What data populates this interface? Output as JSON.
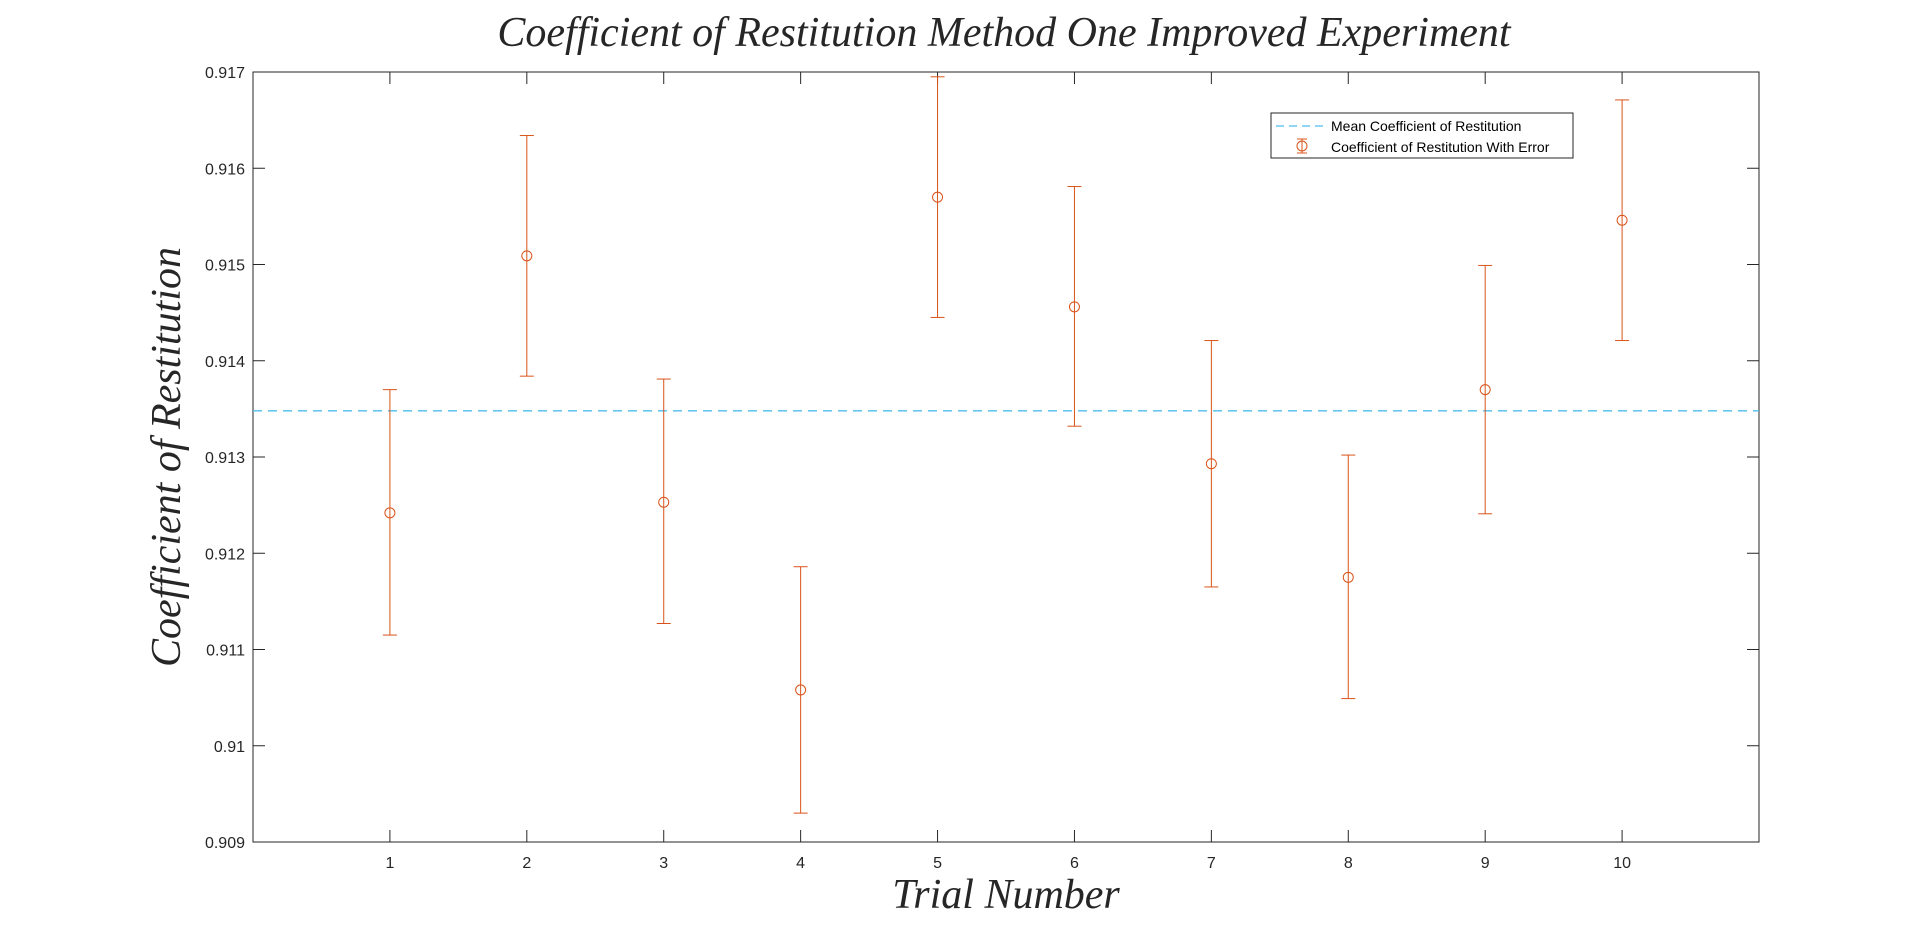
{
  "chart_data": {
    "type": "scatter",
    "title": "Coefficient of Restitution Method One Improved Experiment",
    "xlabel": "Trial Number",
    "ylabel": "Coefficient of Restitution",
    "xlim": [
      0,
      11
    ],
    "ylim": [
      0.909,
      0.917
    ],
    "x_ticks": [
      1,
      2,
      3,
      4,
      5,
      6,
      7,
      8,
      9,
      10
    ],
    "x_tick_labels": [
      "1",
      "2",
      "3",
      "4",
      "5",
      "6",
      "7",
      "8",
      "9",
      "10"
    ],
    "y_ticks": [
      0.909,
      0.91,
      0.911,
      0.912,
      0.913,
      0.914,
      0.915,
      0.916,
      0.917
    ],
    "y_tick_labels": [
      "0.909",
      "0.91",
      "0.911",
      "0.912",
      "0.913",
      "0.914",
      "0.915",
      "0.916",
      "0.917"
    ],
    "grid": false,
    "legend_position": "top-right",
    "series": [
      {
        "name": "Mean Coefficient of Restitution",
        "kind": "dashed-line",
        "color": "#4DBEEE",
        "y": 0.91348
      },
      {
        "name": "Coefficient of Restitution With Error",
        "kind": "errorbar",
        "marker": "circle",
        "color": "#D95319",
        "x": [
          1,
          2,
          3,
          4,
          5,
          6,
          7,
          8,
          9,
          10
        ],
        "y": [
          0.91242,
          0.91509,
          0.91253,
          0.91058,
          0.9157,
          0.91456,
          0.91293,
          0.91175,
          0.9137,
          0.91546
        ],
        "lower": [
          0.91115,
          0.91384,
          0.91127,
          0.9093,
          0.91445,
          0.91332,
          0.91165,
          0.91049,
          0.91241,
          0.91421
        ],
        "upper": [
          0.9137,
          0.91634,
          0.91381,
          0.91186,
          0.91695,
          0.91581,
          0.91421,
          0.91302,
          0.91499,
          0.91671
        ]
      }
    ]
  }
}
